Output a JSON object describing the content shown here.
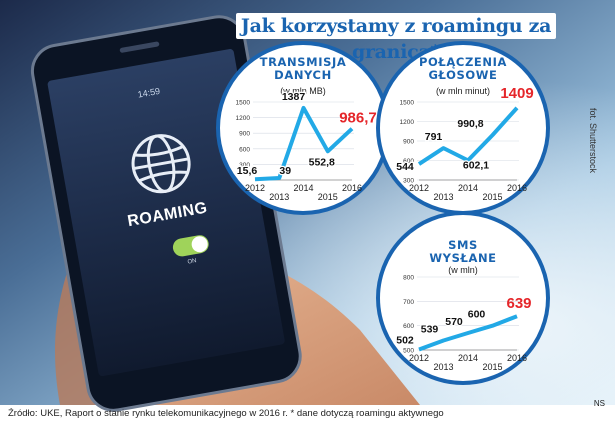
{
  "title": "Jak korzystamy z roamingu za granicą*",
  "photo_credit": "fot. Shutterstock",
  "source": "Źródło: UKE, Raport o stanie rynku telekomunikacyjnego w 2016 r. * dane dotyczą roamingu aktywnego",
  "agency_mark": "NS",
  "phone": {
    "time": "14:59",
    "roaming_label": "ROAMING",
    "toggle_label": "ON"
  },
  "colors": {
    "accent_blue": "#1a64b0",
    "line_blue": "#22a9e6",
    "highlight_red": "#e5262a",
    "circle_border": "#1a64b0"
  },
  "chart_data": [
    {
      "type": "line",
      "title": "Transmisja danych",
      "unit": "(w mln MB)",
      "x": [
        2012,
        2013,
        2014,
        2015,
        2016
      ],
      "y_ticks": [
        300,
        600,
        900,
        1200,
        1500
      ],
      "ylim": [
        0,
        1500
      ],
      "series": [
        {
          "values": [
            15.6,
            39,
            1387,
            552.8,
            986.7
          ]
        }
      ],
      "value_labels": [
        "15,6",
        "39",
        "1387",
        "552,8",
        "986,7"
      ],
      "x_tick_labels": [
        "2012",
        "2013",
        "2014",
        "2015",
        "2016"
      ]
    },
    {
      "type": "line",
      "title": "Połączenia głosowe",
      "unit": "(w mln minut)",
      "x": [
        2012,
        2013,
        2014,
        2015,
        2016
      ],
      "y_ticks": [
        300,
        600,
        900,
        1200,
        1500
      ],
      "ylim": [
        300,
        1500
      ],
      "series": [
        {
          "values": [
            544,
            791,
            602.1,
            990.8,
            1409
          ]
        }
      ],
      "value_labels": [
        "544",
        "791",
        "602,1",
        "990,8",
        "1409"
      ],
      "x_tick_labels": [
        "2012",
        "2013",
        "2014",
        "2015",
        "2016"
      ]
    },
    {
      "type": "line",
      "title": "SMS wysłane",
      "unit": "(w mln)",
      "x": [
        2012,
        2013,
        2014,
        2015,
        2016
      ],
      "y_ticks": [
        500,
        600,
        700,
        800
      ],
      "ylim": [
        500,
        800
      ],
      "series": [
        {
          "values": [
            502,
            539,
            570,
            600,
            639
          ]
        }
      ],
      "value_labels": [
        "502",
        "539",
        "570",
        "600",
        "639"
      ],
      "x_tick_labels": [
        "2012",
        "2013",
        "2014",
        "2015",
        "2016"
      ]
    }
  ]
}
